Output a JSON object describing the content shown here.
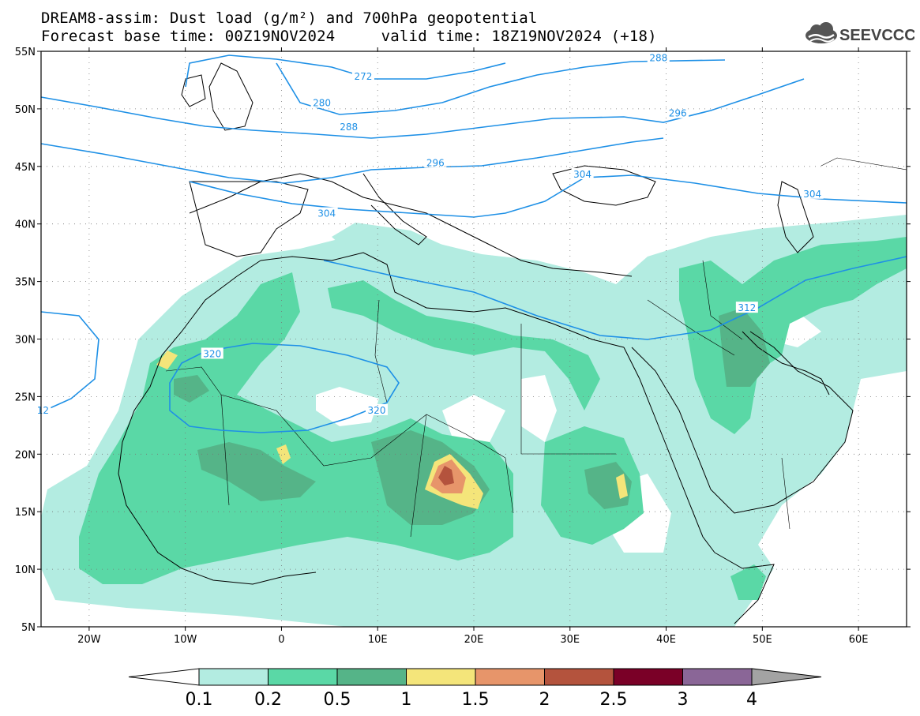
{
  "title": {
    "line1": "DREAM8-assim: Dust load (g/m²) and 700hPa geopotential",
    "line2": "Forecast base time: 00Z19NOV2024     valid time: 18Z19NOV2024 (+18)"
  },
  "logo": {
    "text": "SEEVCCC",
    "icon": "cloud-logo-icon"
  },
  "axes": {
    "lat_labels": [
      "55N",
      "50N",
      "45N",
      "40N",
      "35N",
      "30N",
      "25N",
      "20N",
      "15N",
      "10N",
      "5N"
    ],
    "lat_values": [
      55,
      50,
      45,
      40,
      35,
      30,
      25,
      20,
      15,
      10,
      5
    ],
    "lon_labels": [
      "20W",
      "10W",
      "0",
      "10E",
      "20E",
      "30E",
      "40E",
      "50E",
      "60E"
    ],
    "lon_values": [
      -20,
      -10,
      0,
      10,
      20,
      30,
      40,
      50,
      60
    ],
    "lon_range": [
      -25,
      65
    ],
    "lat_range": [
      5,
      55
    ],
    "grid": "dotted"
  },
  "contours": {
    "color": "#1e90e6",
    "labels": [
      {
        "text": "272",
        "lon": 8.5,
        "lat": 52.8
      },
      {
        "text": "280",
        "lon": 4.2,
        "lat": 50.5
      },
      {
        "text": "288",
        "lon": 39.2,
        "lat": 54.4
      },
      {
        "text": "288",
        "lon": 7.0,
        "lat": 48.4
      },
      {
        "text": "296",
        "lon": 16.0,
        "lat": 45.3
      },
      {
        "text": "296",
        "lon": 41.2,
        "lat": 49.6
      },
      {
        "text": "304",
        "lon": 4.7,
        "lat": 40.9
      },
      {
        "text": "304",
        "lon": 31.3,
        "lat": 44.3
      },
      {
        "text": "304",
        "lon": 55.2,
        "lat": 42.6
      },
      {
        "text": "312",
        "lon": 48.4,
        "lat": 32.7
      },
      {
        "text": "320",
        "lon": -7.2,
        "lat": 28.7
      },
      {
        "text": "320",
        "lon": 9.9,
        "lat": 23.8
      },
      {
        "text": "12",
        "lon": -24.8,
        "lat": 23.8
      }
    ]
  },
  "colorbar": {
    "tick_labels": [
      "0.1",
      "0.2",
      "0.5",
      "1",
      "1.5",
      "2",
      "2.5",
      "3",
      "4"
    ],
    "colors": [
      "#b3ece1",
      "#5ad8a6",
      "#55b488",
      "#f4e57a",
      "#e7956a",
      "#b4533d",
      "#7a0027",
      "#8a6697"
    ],
    "end_low": "#ffffff",
    "end_high": "#a3a3a3"
  }
}
